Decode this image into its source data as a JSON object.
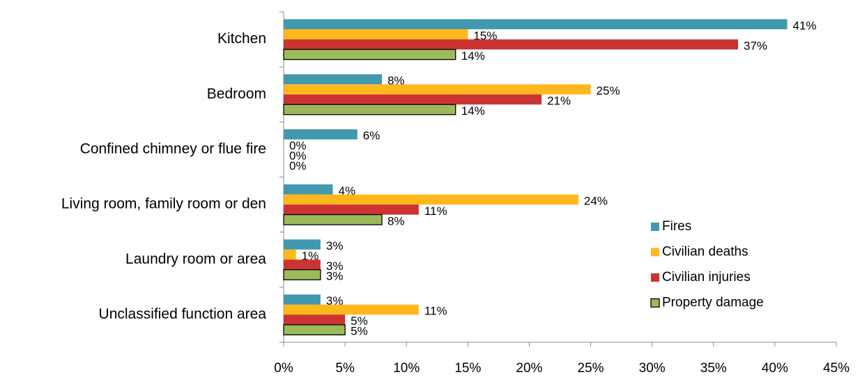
{
  "chart_data": {
    "type": "bar",
    "orientation": "horizontal",
    "categories": [
      "Kitchen",
      "Bedroom",
      "Confined chimney or flue fire",
      "Living room, family room or den",
      "Laundry room or area",
      "Unclassified function area"
    ],
    "series": [
      {
        "name": "Fires",
        "color": "#4198af",
        "values": [
          41,
          8,
          6,
          4,
          3,
          3
        ],
        "value_labels": [
          "41%",
          "8%",
          "6%",
          "4%",
          "3%",
          "3%"
        ]
      },
      {
        "name": "Civilian deaths",
        "color": "#ffb81c",
        "values": [
          15,
          25,
          0,
          24,
          1,
          11
        ],
        "value_labels": [
          "15%",
          "25%",
          "0%",
          "24%",
          "1%",
          "11%"
        ]
      },
      {
        "name": "Civilian injuries",
        "color": "#cc3333",
        "values": [
          37,
          21,
          0,
          11,
          3,
          5
        ],
        "value_labels": [
          "37%",
          "21%",
          "0%",
          "11%",
          "3%",
          "5%"
        ]
      },
      {
        "name": "Property damage",
        "color": "#9bbb59",
        "stroke": "#000000",
        "values": [
          14,
          14,
          0,
          8,
          3,
          5
        ],
        "value_labels": [
          "14%",
          "14%",
          "0%",
          "8%",
          "3%",
          "5%"
        ]
      }
    ],
    "xlim": [
      0,
      45
    ],
    "xticks": [
      {
        "value": 0,
        "label": "0%"
      },
      {
        "value": 5,
        "label": "5%"
      },
      {
        "value": 10,
        "label": "10%"
      },
      {
        "value": 15,
        "label": "15%"
      },
      {
        "value": 20,
        "label": "20%"
      },
      {
        "value": 25,
        "label": "25%"
      },
      {
        "value": 30,
        "label": "30%"
      },
      {
        "value": 35,
        "label": "35%"
      },
      {
        "value": 40,
        "label": "40%"
      },
      {
        "value": 45,
        "label": "45%"
      }
    ],
    "grid": false,
    "legend": "right"
  }
}
